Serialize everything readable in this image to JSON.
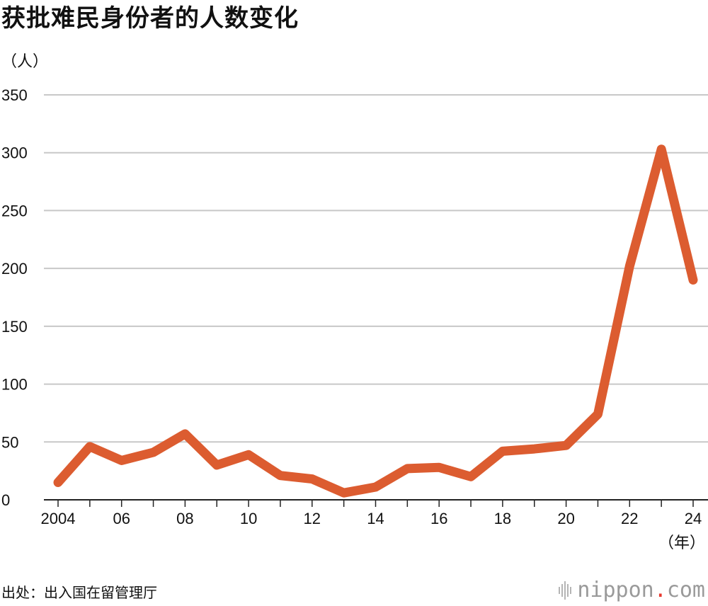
{
  "title": "获批难民身份者的人数变化",
  "y_unit_label": "（人）",
  "x_unit_label": "（年）",
  "source": "出处：出入国在留管理厅",
  "logo": {
    "name": "nippon",
    "dot": ".",
    "suffix": "com"
  },
  "colors": {
    "line": "#dc5c30",
    "grid": "#c8c8c8",
    "axis": "#222222",
    "text": "#111111",
    "logo_dot": "#e8392f"
  },
  "chart_data": {
    "type": "line",
    "title": "获批难民身份者的人数变化",
    "ylabel": "（人）",
    "xlabel": "（年）",
    "ylim": [
      0,
      350
    ],
    "yticks": [
      0,
      50,
      100,
      150,
      200,
      250,
      300,
      350
    ],
    "x": [
      2004,
      2005,
      2006,
      2007,
      2008,
      2009,
      2010,
      2011,
      2012,
      2013,
      2014,
      2015,
      2016,
      2017,
      2018,
      2019,
      2020,
      2021,
      2022,
      2023,
      2024
    ],
    "xtick_labels": [
      {
        "x": 2004,
        "label": "2004"
      },
      {
        "x": 2006,
        "label": "06"
      },
      {
        "x": 2008,
        "label": "08"
      },
      {
        "x": 2010,
        "label": "10"
      },
      {
        "x": 2012,
        "label": "12"
      },
      {
        "x": 2014,
        "label": "14"
      },
      {
        "x": 2016,
        "label": "16"
      },
      {
        "x": 2018,
        "label": "18"
      },
      {
        "x": 2020,
        "label": "20"
      },
      {
        "x": 2022,
        "label": "22"
      },
      {
        "x": 2024,
        "label": "24"
      }
    ],
    "series": [
      {
        "values": [
          15,
          46,
          34,
          41,
          57,
          30,
          39,
          21,
          18,
          6,
          11,
          27,
          28,
          20,
          42,
          44,
          47,
          74,
          202,
          303,
          190
        ]
      }
    ],
    "grid": true,
    "legend": "none"
  }
}
